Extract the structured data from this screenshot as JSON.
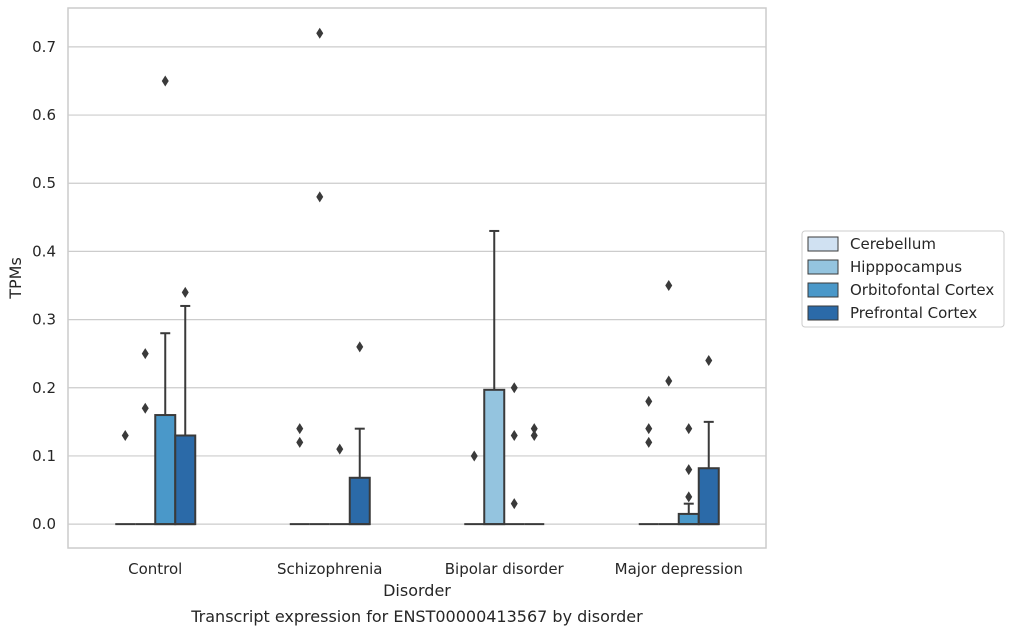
{
  "chart_data": {
    "type": "box",
    "title": "",
    "caption": "Transcript expression for ENST00000413567 by disorder",
    "xlabel": "Disorder",
    "ylabel": "TPMs",
    "ylim": [
      -0.035,
      0.757
    ],
    "yticks": [
      0.0,
      0.1,
      0.2,
      0.3,
      0.4,
      0.5,
      0.6,
      0.7
    ],
    "ytick_labels": [
      "0.0",
      "0.1",
      "0.2",
      "0.3",
      "0.4",
      "0.5",
      "0.6",
      "0.7"
    ],
    "grid": "horizontal",
    "legend_position": "right",
    "categories": [
      "Control",
      "Schizophrenia",
      "Bipolar disorder",
      "Major depression"
    ],
    "series": [
      {
        "name": "Cerebellum",
        "color": "#d0e1f2",
        "boxes": [
          {
            "q1": 0,
            "median": 0,
            "q3": 0,
            "whisker_low": 0,
            "whisker_high": 0,
            "outliers": [
              0.13
            ]
          },
          {
            "q1": 0,
            "median": 0,
            "q3": 0,
            "whisker_low": 0,
            "whisker_high": 0,
            "outliers": [
              0.14,
              0.12
            ]
          },
          {
            "q1": 0,
            "median": 0,
            "q3": 0,
            "whisker_low": 0,
            "whisker_high": 0,
            "outliers": [
              0.1
            ]
          },
          {
            "q1": 0,
            "median": 0,
            "q3": 0,
            "whisker_low": 0,
            "whisker_high": 0,
            "outliers": [
              0.18,
              0.14,
              0.12
            ]
          }
        ]
      },
      {
        "name": "Hipppocampus",
        "color": "#94c4df",
        "boxes": [
          {
            "q1": 0,
            "median": 0,
            "q3": 0,
            "whisker_low": 0,
            "whisker_high": 0,
            "outliers": [
              0.25,
              0.17
            ]
          },
          {
            "q1": 0,
            "median": 0,
            "q3": 0,
            "whisker_low": 0,
            "whisker_high": 0,
            "outliers": [
              0.72,
              0.48
            ]
          },
          {
            "q1": 0,
            "median": 0,
            "q3": 0.197,
            "whisker_low": 0,
            "whisker_high": 0.43,
            "outliers": []
          },
          {
            "q1": 0,
            "median": 0,
            "q3": 0,
            "whisker_low": 0,
            "whisker_high": 0,
            "outliers": [
              0.35,
              0.21
            ]
          }
        ]
      },
      {
        "name": "Orbitofontal Cortex",
        "color": "#4a98c9",
        "boxes": [
          {
            "q1": 0,
            "median": 0,
            "q3": 0.16,
            "whisker_low": 0,
            "whisker_high": 0.28,
            "outliers": [
              0.65
            ]
          },
          {
            "q1": 0,
            "median": 0,
            "q3": 0,
            "whisker_low": 0,
            "whisker_high": 0,
            "outliers": [
              0.11
            ]
          },
          {
            "q1": 0,
            "median": 0,
            "q3": 0,
            "whisker_low": 0,
            "whisker_high": 0,
            "outliers": [
              0.2,
              0.13,
              0.03
            ]
          },
          {
            "q1": 0,
            "median": 0,
            "q3": 0.015,
            "whisker_low": 0,
            "whisker_high": 0.03,
            "outliers": [
              0.14,
              0.08,
              0.04
            ]
          }
        ]
      },
      {
        "name": "Prefrontal Cortex",
        "color": "#2b6aa8",
        "boxes": [
          {
            "q1": 0,
            "median": 0,
            "q3": 0.13,
            "whisker_low": 0,
            "whisker_high": 0.32,
            "outliers": [
              0.34
            ]
          },
          {
            "q1": 0,
            "median": 0,
            "q3": 0.068,
            "whisker_low": 0,
            "whisker_high": 0.14,
            "outliers": [
              0.26
            ]
          },
          {
            "q1": 0,
            "median": 0,
            "q3": 0,
            "whisker_low": 0,
            "whisker_high": 0,
            "outliers": [
              0.14,
              0.13
            ]
          },
          {
            "q1": 0,
            "median": 0,
            "q3": 0.082,
            "whisker_low": 0,
            "whisker_high": 0.15,
            "outliers": [
              0.24
            ]
          }
        ]
      }
    ]
  }
}
